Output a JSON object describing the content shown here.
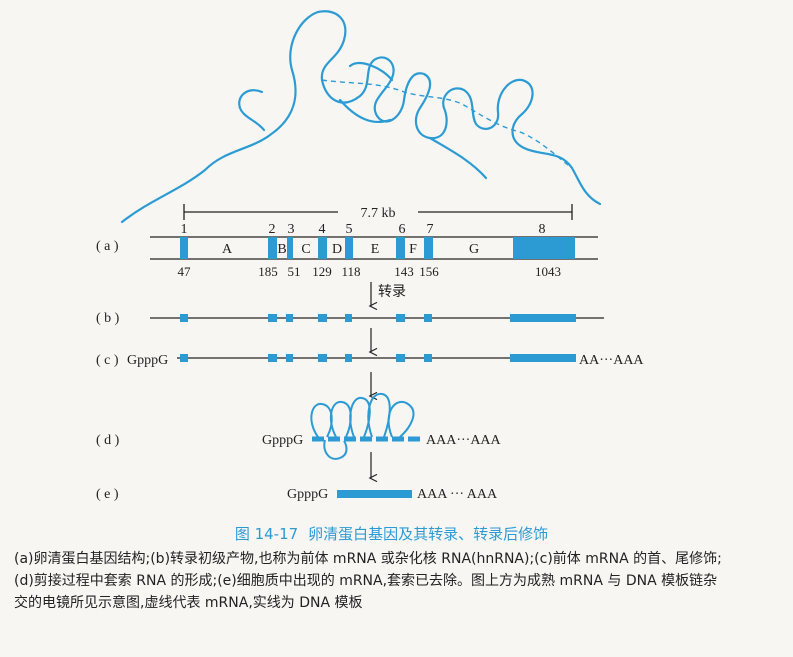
{
  "em_image": {
    "description_icon": "electron-micrograph-hybrid"
  },
  "scale": {
    "label": "7.7 kb"
  },
  "rows": {
    "a": "( a )",
    "b": "( b )",
    "c": "( c )",
    "d": "( d )",
    "e": "( e )"
  },
  "exons": [
    "1",
    "2",
    "3",
    "4",
    "5",
    "6",
    "7",
    "8"
  ],
  "introns": [
    "A",
    "B",
    "C",
    "D",
    "E",
    "F",
    "G"
  ],
  "exon_sizes": [
    "47",
    "185",
    "51",
    "129",
    "118",
    "143",
    "156",
    "1043"
  ],
  "transcription_label": "转录",
  "cap": "GpppG",
  "polyA_c": "AA···AAA",
  "polyA_d": "AAA···AAA",
  "polyA_e": "AAA ··· AAA",
  "caption": {
    "figure_no": "图 14-17",
    "title": "卵清蛋白基因及其转录、转录后修饰",
    "body": "(a)卵清蛋白基因结构;(b)转录初级产物,也称为前体 mRNA 或杂化核 RNA(hnRNA);(c)前体 mRNA 的首、尾修饰;(d)剪接过程中套索 RNA 的形成;(e)细胞质中出现的 mRNA,套索已去除。图上方为成熟 mRNA 与 DNA 模板链杂交的电镜所见示意图,虚线代表 mRNA,实线为 DNA 模板"
  },
  "colors": {
    "exon": "#2c9bd4",
    "line": "#222222",
    "caption": "#2c9bd4"
  }
}
